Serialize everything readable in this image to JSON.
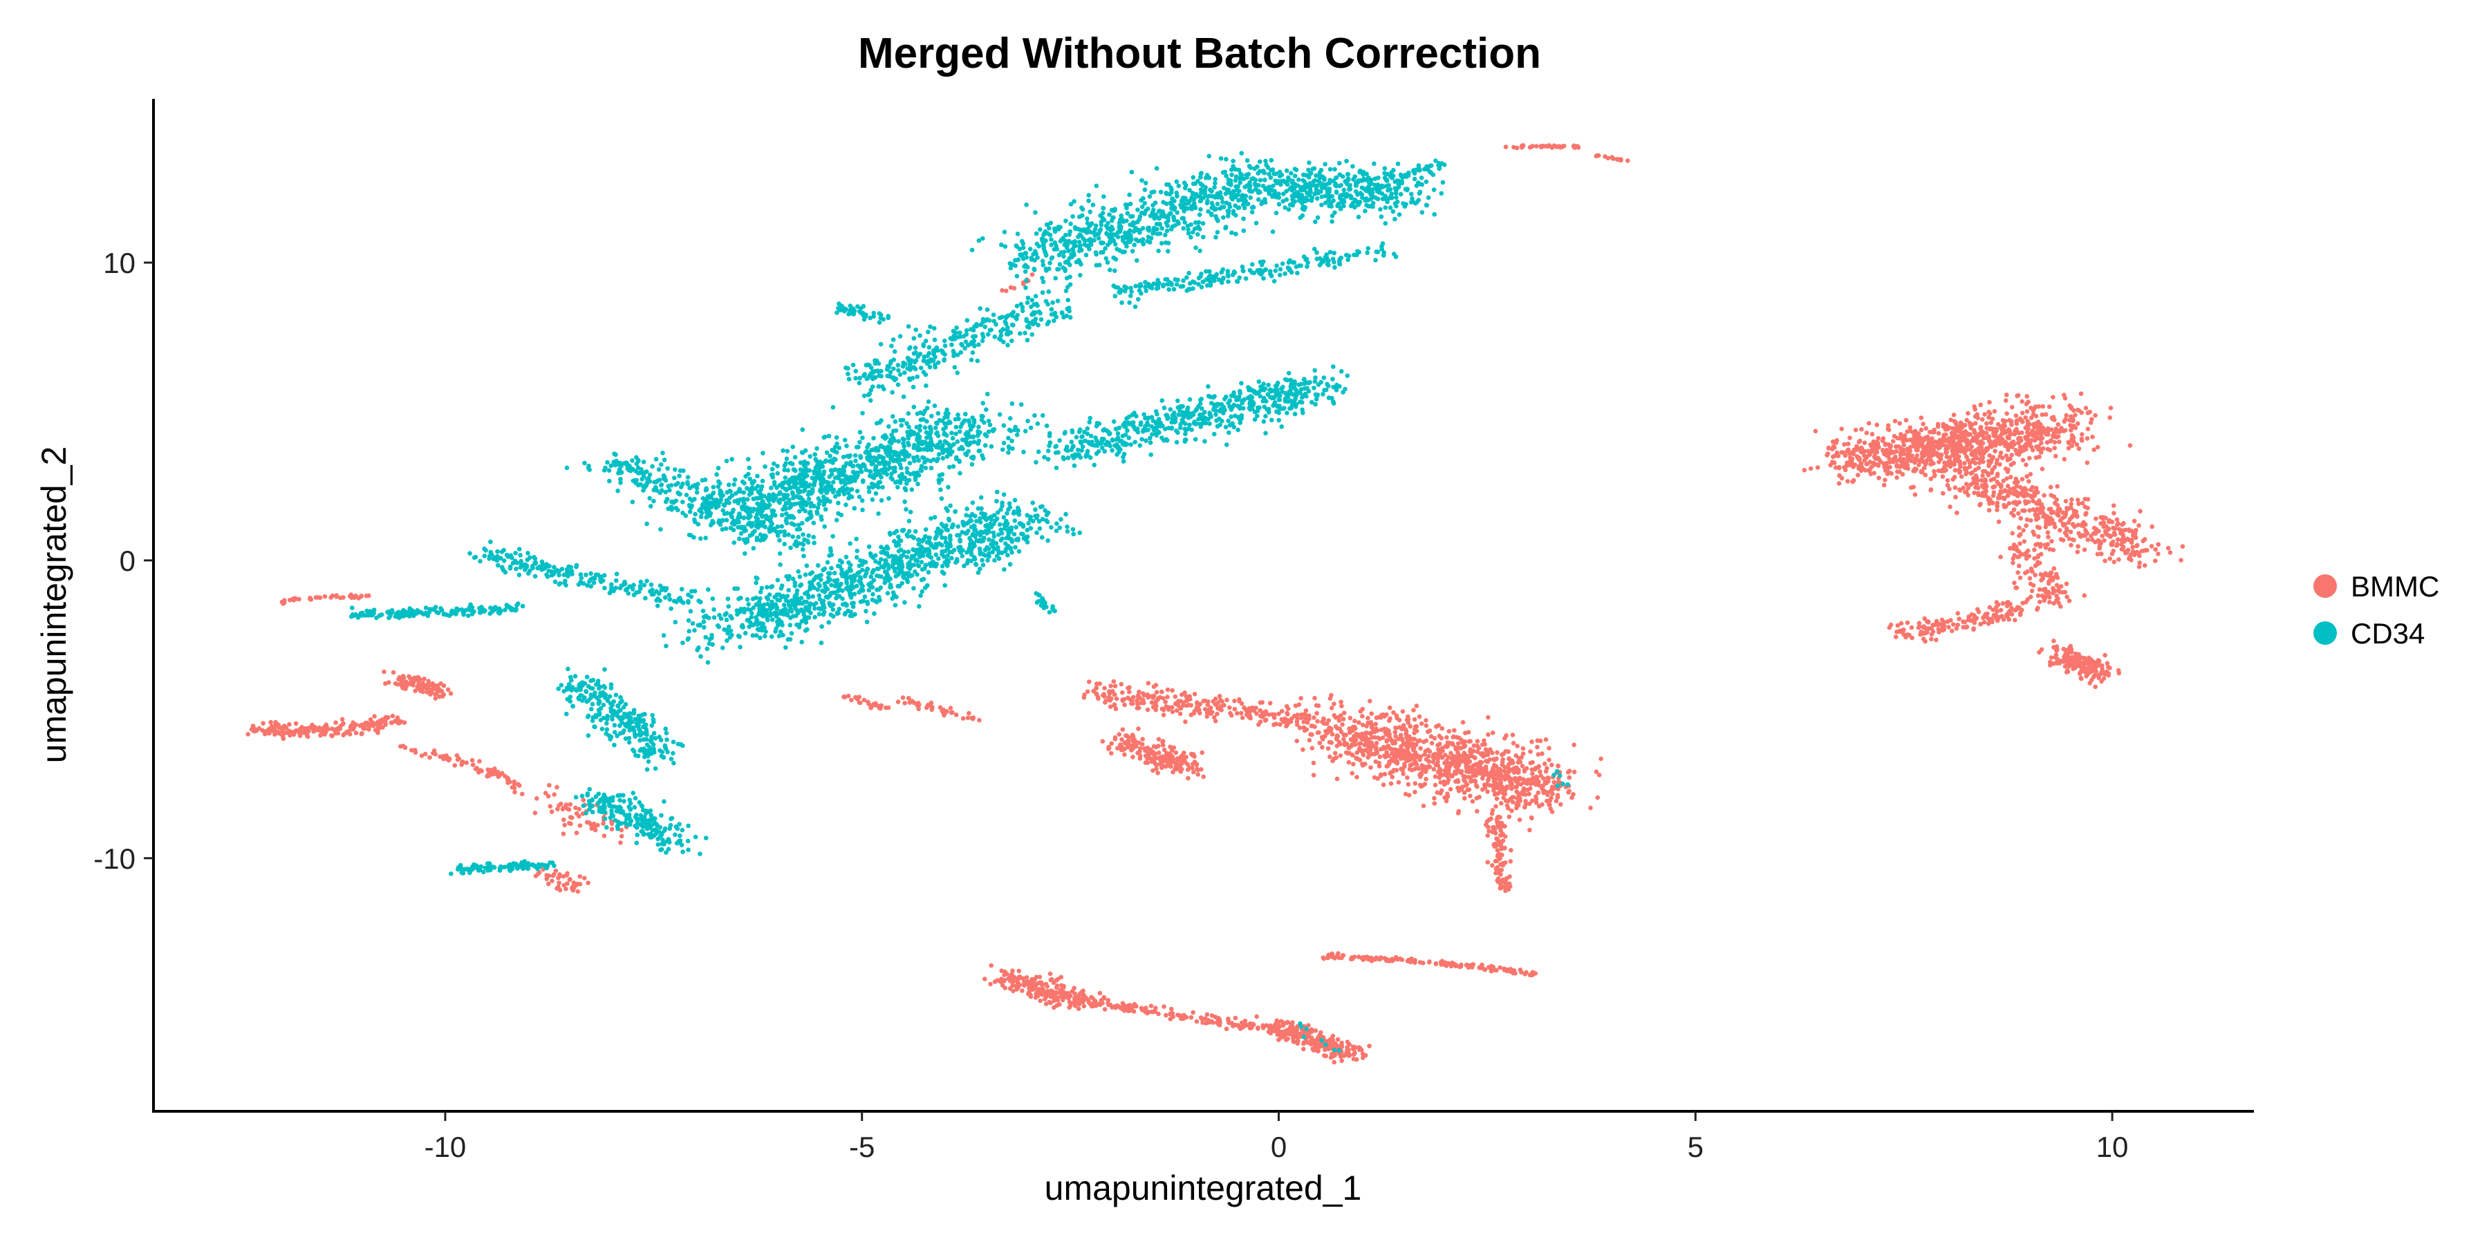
{
  "chart_data": {
    "type": "scatter",
    "title": "Merged Without Batch Correction",
    "xlabel": "umapunintegrated_1",
    "ylabel": "umapunintegrated_2",
    "xlim": [
      -13.5,
      11.7
    ],
    "ylim": [
      -18.5,
      15.5
    ],
    "xticks": [
      -10,
      -5,
      0,
      5,
      10
    ],
    "yticks": [
      -10,
      0,
      10
    ],
    "grid": false,
    "legend_position": "right",
    "series": [
      {
        "name": "BMMC",
        "color": "#F8766D",
        "clusters": [
          {
            "x": [
              6.8,
              8.2,
              9.5
            ],
            "y": [
              3.4,
              3.9,
              4.6
            ],
            "spread": [
              0.35,
              0.55
            ],
            "n": 900
          },
          {
            "x": [
              8.0,
              9.2,
              10.4
            ],
            "y": [
              3.3,
              1.5,
              0.3
            ],
            "spread": [
              0.3,
              0.45
            ],
            "n": 500
          },
          {
            "x": [
              9.0,
              9.1,
              9.3
            ],
            "y": [
              0.8,
              -0.6,
              -1.4
            ],
            "spread": [
              0.2,
              0.2
            ],
            "n": 120
          },
          {
            "x": [
              7.4,
              8.2,
              9.0
            ],
            "y": [
              -2.4,
              -2.2,
              -1.5
            ],
            "spread": [
              0.1,
              0.2
            ],
            "n": 150
          },
          {
            "x": [
              9.3,
              9.6,
              9.9
            ],
            "y": [
              -3.0,
              -3.5,
              -3.9
            ],
            "spread": [
              0.15,
              0.2
            ],
            "n": 150
          },
          {
            "x": [
              -2.3,
              -1.0,
              0.5
            ],
            "y": [
              -4.4,
              -4.9,
              -5.4
            ],
            "spread": [
              0.08,
              0.25
            ],
            "n": 250
          },
          {
            "x": [
              -2.0,
              -1.5,
              -1.0
            ],
            "y": [
              -6.0,
              -6.5,
              -7.0
            ],
            "spread": [
              0.15,
              0.25
            ],
            "n": 180
          },
          {
            "x": [
              0.5,
              2.2,
              3.3
            ],
            "y": [
              -5.6,
              -7.0,
              -7.6
            ],
            "spread": [
              0.3,
              0.7
            ],
            "n": 1000
          },
          {
            "x": [
              2.6,
              2.65,
              2.7
            ],
            "y": [
              -8.5,
              -9.8,
              -11.1
            ],
            "spread": [
              0.07,
              0.1
            ],
            "n": 100
          },
          {
            "x": [
              -3.3,
              -2.8,
              -2.4
            ],
            "y": [
              -14.0,
              -14.4,
              -14.8
            ],
            "spread": [
              0.15,
              0.2
            ],
            "n": 200
          },
          {
            "x": [
              -2.4,
              -1.0,
              0.0
            ],
            "y": [
              -14.8,
              -15.3,
              -15.8
            ],
            "spread": [
              0.05,
              0.1
            ],
            "n": 150
          },
          {
            "x": [
              0.0,
              0.45,
              0.9
            ],
            "y": [
              -15.6,
              -16.2,
              -16.6
            ],
            "spread": [
              0.15,
              0.2
            ],
            "n": 230
          },
          {
            "x": [
              0.5,
              1.8,
              3.1
            ],
            "y": [
              -13.3,
              -13.4,
              -13.9
            ],
            "spread": [
              0.02,
              0.05
            ],
            "n": 150
          },
          {
            "x": [
              -12.3,
              -11.5,
              -10.6
            ],
            "y": [
              -5.6,
              -5.9,
              -5.4
            ],
            "spread": [
              0.1,
              0.15
            ],
            "n": 200
          },
          {
            "x": [
              -10.6,
              -10.3,
              -10.0
            ],
            "y": [
              -3.9,
              -4.2,
              -4.5
            ],
            "spread": [
              0.1,
              0.15
            ],
            "n": 100
          },
          {
            "x": [
              -10.5,
              -9.5,
              -9.1
            ],
            "y": [
              -6.3,
              -6.8,
              -7.7
            ],
            "spread": [
              0.05,
              0.1
            ],
            "n": 70
          },
          {
            "x": [
              -8.7,
              -8.4,
              -8.0
            ],
            "y": [
              -8.0,
              -8.6,
              -9.2
            ],
            "spread": [
              0.2,
              0.25
            ],
            "n": 60
          },
          {
            "x": [
              -8.9,
              -8.6,
              -8.4
            ],
            "y": [
              -10.5,
              -10.8,
              -11.0
            ],
            "spread": [
              0.1,
              0.15
            ],
            "n": 40
          },
          {
            "x": [
              -12.0,
              -11.5,
              -10.9
            ],
            "y": [
              -1.4,
              -1.2,
              -1.2
            ],
            "spread": [
              0.03,
              0.05
            ],
            "n": 40
          },
          {
            "x": [
              -5.2,
              -5.0,
              -4.7
            ],
            "y": [
              -4.5,
              -4.8,
              -5.0
            ],
            "spread": [
              0.05,
              0.05
            ],
            "n": 30
          },
          {
            "x": [
              -4.5,
              -4.0,
              -3.6
            ],
            "y": [
              -4.7,
              -5.0,
              -5.4
            ],
            "spread": [
              0.08,
              0.08
            ],
            "n": 40
          },
          {
            "x": [
              2.7,
              3.2,
              3.6
            ],
            "y": [
              13.9,
              13.9,
              13.9
            ],
            "spread": [
              0.02,
              0.03
            ],
            "n": 40
          },
          {
            "x": [
              3.8,
              4.0,
              4.2
            ],
            "y": [
              13.6,
              13.5,
              13.4
            ],
            "spread": [
              0.02,
              0.03
            ],
            "n": 15
          },
          {
            "x": [
              -3.3,
              -3.1,
              -2.9
            ],
            "y": [
              9.0,
              9.3,
              9.6
            ],
            "spread": [
              0.05,
              0.05
            ],
            "n": 10
          }
        ]
      },
      {
        "name": "CD34",
        "color": "#00BFC4",
        "clusters": [
          {
            "x": [
              -3.0,
              -1.8,
              -0.2
            ],
            "y": [
              10.0,
              11.5,
              12.5
            ],
            "spread": [
              0.4,
              0.6
            ],
            "n": 650
          },
          {
            "x": [
              -0.5,
              0.7,
              1.6
            ],
            "y": [
              12.8,
              12.1,
              12.6
            ],
            "spread": [
              0.3,
              0.5
            ],
            "n": 450
          },
          {
            "x": [
              -2.0,
              -0.4,
              1.2
            ],
            "y": [
              9.0,
              9.6,
              10.4
            ],
            "spread": [
              0.15,
              0.2
            ],
            "n": 200
          },
          {
            "x": [
              -5.0,
              -3.8,
              -2.6
            ],
            "y": [
              6.0,
              7.4,
              8.6
            ],
            "spread": [
              0.25,
              0.4
            ],
            "n": 300
          },
          {
            "x": [
              -2.6,
              -0.8,
              0.5
            ],
            "y": [
              3.6,
              5.0,
              5.9
            ],
            "spread": [
              0.3,
              0.4
            ],
            "n": 550
          },
          {
            "x": [
              -6.6,
              -5.2,
              -3.6
            ],
            "y": [
              1.5,
              3.0,
              4.5
            ],
            "spread": [
              0.5,
              0.6
            ],
            "n": 1000
          },
          {
            "x": [
              -6.6,
              -4.9,
              -3.0
            ],
            "y": [
              -2.4,
              -0.5,
              1.5
            ],
            "spread": [
              0.45,
              0.55
            ],
            "n": 1000
          },
          {
            "x": [
              -8.0,
              -7.0,
              -5.8
            ],
            "y": [
              3.2,
              2.2,
              0.6
            ],
            "spread": [
              0.3,
              0.35
            ],
            "n": 300
          },
          {
            "x": [
              -9.5,
              -8.5,
              -7.0
            ],
            "y": [
              0.2,
              -0.6,
              -1.3
            ],
            "spread": [
              0.15,
              0.2
            ],
            "n": 200
          },
          {
            "x": [
              -11.2,
              -10.2,
              -9.1
            ],
            "y": [
              -1.8,
              -1.8,
              -1.6
            ],
            "spread": [
              0.05,
              0.1
            ],
            "n": 150
          },
          {
            "x": [
              -5.3,
              -5.0,
              -4.7
            ],
            "y": [
              8.5,
              8.3,
              8.1
            ],
            "spread": [
              0.05,
              0.1
            ],
            "n": 40
          },
          {
            "x": [
              -8.4,
              -7.9,
              -7.4
            ],
            "y": [
              -4.0,
              -5.5,
              -6.5
            ],
            "spread": [
              0.2,
              0.3
            ],
            "n": 250
          },
          {
            "x": [
              -8.2,
              -7.7,
              -7.2
            ],
            "y": [
              -8.0,
              -8.7,
              -9.5
            ],
            "spread": [
              0.2,
              0.3
            ],
            "n": 200
          },
          {
            "x": [
              -9.9,
              -9.3,
              -8.7
            ],
            "y": [
              -10.4,
              -10.3,
              -10.2
            ],
            "spread": [
              0.05,
              0.1
            ],
            "n": 90
          },
          {
            "x": [
              -2.9,
              -2.8,
              -2.7
            ],
            "y": [
              -1.1,
              -1.5,
              -1.8
            ],
            "spread": [
              0.04,
              0.05
            ],
            "n": 20
          },
          {
            "x": [
              1.6,
              1.8,
              2.0
            ],
            "y": [
              13.1,
              13.2,
              13.3
            ],
            "spread": [
              0.05,
              0.05
            ],
            "n": 20
          },
          {
            "x": [
              0.1,
              0.4,
              0.7
            ],
            "y": [
              -15.5,
              -16.0,
              -16.5
            ],
            "spread": [
              0.1,
              0.1
            ],
            "n": 8
          },
          {
            "x": [
              3.3,
              3.4,
              3.5
            ],
            "y": [
              -7.0,
              -7.4,
              -7.8
            ],
            "spread": [
              0.05,
              0.05
            ],
            "n": 6
          }
        ]
      }
    ]
  }
}
